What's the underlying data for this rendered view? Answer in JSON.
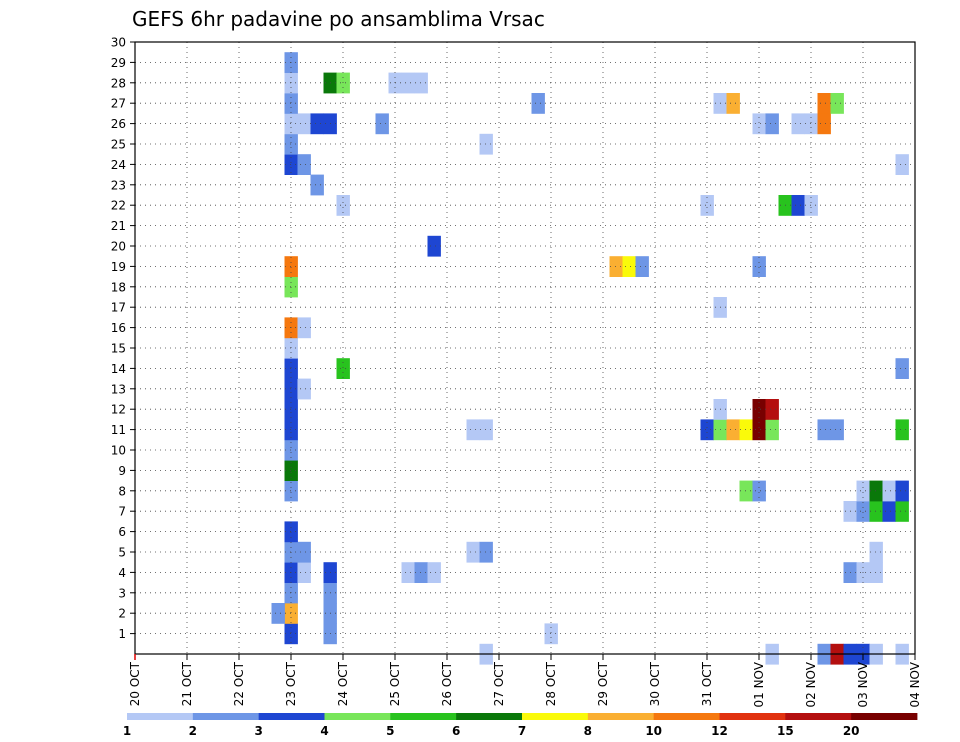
{
  "chart_data": {
    "type": "heatmap",
    "title": "GEFS 6hr padavine po ansamblima Vrsac",
    "x_tick_labels": [
      "20 OCT",
      "21 OCT",
      "22 OCT",
      "23 OCT",
      "24 OCT",
      "25 OCT",
      "26 OCT",
      "27 OCT",
      "28 OCT",
      "29 OCT",
      "30 OCT",
      "31 OCT",
      "01 NOV",
      "02 NOV",
      "03 NOV",
      "04 NOV"
    ],
    "y_tick_labels": [
      "1",
      "2",
      "3",
      "4",
      "5",
      "6",
      "7",
      "8",
      "9",
      "10",
      "11",
      "12",
      "13",
      "14",
      "15",
      "16",
      "17",
      "18",
      "19",
      "20",
      "21",
      "22",
      "23",
      "24",
      "25",
      "26",
      "27",
      "28",
      "29",
      "30"
    ],
    "x_range_days": [
      0,
      15
    ],
    "y_range": [
      0,
      30
    ],
    "grid": true,
    "colorbar": {
      "levels": [
        "1",
        "2",
        "3",
        "4",
        "5",
        "6",
        "7",
        "8",
        "10",
        "12",
        "15",
        "20"
      ],
      "colors": [
        "#b4c8f5",
        "#6e96e6",
        "#1e46d2",
        "#78e65a",
        "#28c31e",
        "#0a780a",
        "#fafa0a",
        "#faaf32",
        "#f5780f",
        "#e1320f",
        "#b40f0f",
        "#780000"
      ]
    },
    "cells": [
      [
        3.0,
        1,
        3
      ],
      [
        3.0,
        2,
        8
      ],
      [
        2.75,
        2,
        2
      ],
      [
        3.0,
        3,
        2
      ],
      [
        3.0,
        4,
        3
      ],
      [
        3.25,
        4,
        1
      ],
      [
        3.0,
        5,
        2
      ],
      [
        3.25,
        5,
        2
      ],
      [
        3.0,
        6,
        3
      ],
      [
        3.0,
        8,
        2
      ],
      [
        3.0,
        9,
        6
      ],
      [
        3.0,
        10,
        2
      ],
      [
        3.0,
        11,
        3
      ],
      [
        3.0,
        12,
        3
      ],
      [
        3.0,
        13,
        3
      ],
      [
        3.25,
        13,
        1
      ],
      [
        3.0,
        14,
        3
      ],
      [
        3.0,
        15,
        1
      ],
      [
        3.0,
        16,
        9
      ],
      [
        3.25,
        16,
        1
      ],
      [
        3.0,
        18,
        4
      ],
      [
        3.0,
        19,
        9
      ],
      [
        3.0,
        24,
        3
      ],
      [
        3.25,
        24,
        2
      ],
      [
        3.5,
        23,
        2
      ],
      [
        3.0,
        25,
        2
      ],
      [
        3.0,
        26,
        1
      ],
      [
        3.25,
        26,
        1
      ],
      [
        3.5,
        26,
        3
      ],
      [
        3.75,
        26,
        3
      ],
      [
        3.0,
        27,
        2
      ],
      [
        3.0,
        28,
        1
      ],
      [
        3.0,
        29,
        2
      ],
      [
        3.75,
        1,
        2
      ],
      [
        3.75,
        2,
        2
      ],
      [
        3.75,
        3,
        2
      ],
      [
        3.75,
        4,
        3
      ],
      [
        3.75,
        28,
        6
      ],
      [
        4.0,
        28,
        4
      ],
      [
        4.0,
        14,
        5
      ],
      [
        4.0,
        22,
        1
      ],
      [
        4.75,
        26,
        2
      ],
      [
        5.0,
        28,
        1
      ],
      [
        5.25,
        28,
        1
      ],
      [
        5.5,
        28,
        1
      ],
      [
        5.25,
        4,
        1
      ],
      [
        5.5,
        4,
        2
      ],
      [
        5.75,
        4,
        1
      ],
      [
        5.75,
        20,
        3
      ],
      [
        6.5,
        5,
        1
      ],
      [
        6.75,
        5,
        2
      ],
      [
        6.5,
        11,
        1
      ],
      [
        6.75,
        11,
        1
      ],
      [
        6.75,
        25,
        1
      ],
      [
        6.75,
        0,
        1
      ],
      [
        7.75,
        27,
        2
      ],
      [
        8.0,
        1,
        1
      ],
      [
        9.25,
        19,
        8
      ],
      [
        9.5,
        19,
        7
      ],
      [
        9.75,
        19,
        2
      ],
      [
        11.0,
        11,
        3
      ],
      [
        11.25,
        11,
        4
      ],
      [
        11.5,
        11,
        8
      ],
      [
        11.75,
        11,
        7
      ],
      [
        12.0,
        11,
        12
      ],
      [
        12.25,
        11,
        4
      ],
      [
        11.25,
        12,
        1
      ],
      [
        12.0,
        12,
        12
      ],
      [
        12.25,
        12,
        11
      ],
      [
        11.25,
        27,
        1
      ],
      [
        11.5,
        27,
        8
      ],
      [
        11.75,
        8,
        4
      ],
      [
        12.0,
        8,
        2
      ],
      [
        11.0,
        22,
        1
      ],
      [
        11.25,
        17,
        1
      ],
      [
        12.0,
        19,
        2
      ],
      [
        12.0,
        26,
        1
      ],
      [
        12.25,
        26,
        2
      ],
      [
        12.25,
        0,
        1
      ],
      [
        12.5,
        22,
        5
      ],
      [
        12.75,
        22,
        3
      ],
      [
        13.0,
        22,
        1
      ],
      [
        12.75,
        26,
        1
      ],
      [
        13.0,
        26,
        1
      ],
      [
        13.25,
        26,
        9
      ],
      [
        13.25,
        27,
        9
      ],
      [
        13.5,
        27,
        4
      ],
      [
        13.25,
        11,
        2
      ],
      [
        13.5,
        11,
        2
      ],
      [
        13.25,
        0,
        2
      ],
      [
        13.5,
        0,
        11
      ],
      [
        13.75,
        0,
        3
      ],
      [
        14.0,
        0,
        3
      ],
      [
        14.25,
        0,
        1
      ],
      [
        13.75,
        7,
        1
      ],
      [
        14.0,
        7,
        2
      ],
      [
        14.25,
        7,
        5
      ],
      [
        14.5,
        7,
        3
      ],
      [
        14.75,
        7,
        5
      ],
      [
        14.0,
        8,
        1
      ],
      [
        14.25,
        8,
        6
      ],
      [
        14.5,
        8,
        1
      ],
      [
        14.75,
        8,
        3
      ],
      [
        13.75,
        4,
        2
      ],
      [
        14.0,
        4,
        1
      ],
      [
        14.25,
        5,
        1
      ],
      [
        14.25,
        4,
        1
      ],
      [
        14.75,
        14,
        2
      ],
      [
        14.75,
        11,
        5
      ],
      [
        14.75,
        24,
        1
      ],
      [
        14.75,
        0,
        1
      ]
    ]
  }
}
